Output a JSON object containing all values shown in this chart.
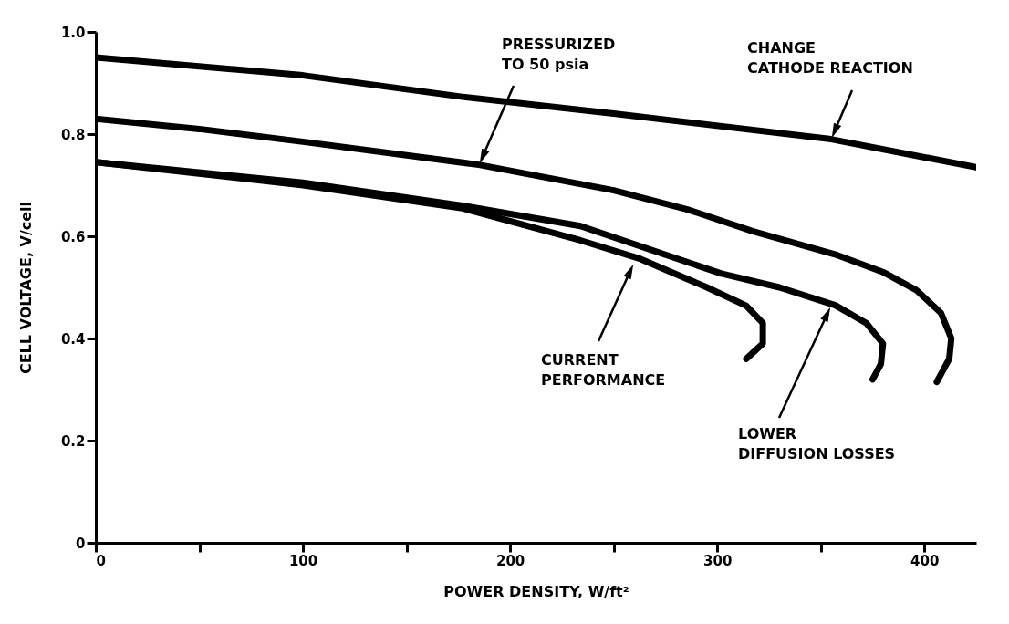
{
  "chart_data": {
    "type": "line",
    "xlabel": "POWER DENSITY, W/ft²",
    "ylabel": "CELL VOLTAGE, V/cell",
    "xlim": [
      0,
      425
    ],
    "ylim": [
      0,
      1.0
    ],
    "xticks": [
      0,
      {
        "value": 50,
        "label": null
      },
      100,
      {
        "value": 150,
        "label": null
      },
      200,
      {
        "value": 250,
        "label": null
      },
      300,
      {
        "value": 350,
        "label": null
      },
      400
    ],
    "yticks": [
      0,
      {
        "value": 0.2,
        "label": "0.2"
      },
      {
        "value": 0.4,
        "label": "0.4"
      },
      {
        "value": 0.6,
        "label": "0.6"
      },
      {
        "value": 0.8,
        "label": "0.8"
      },
      {
        "value": 1.0,
        "label": "1.0"
      }
    ],
    "grid": false,
    "legend": false,
    "marker": "none",
    "line_style": "solid",
    "series": [
      {
        "color": "#000000",
        "x": [
          0,
          100,
          177,
          250,
          355,
          425
        ],
        "values": [
          0.95,
          0.915,
          0.873,
          0.84,
          0.79,
          0.735
        ]
      },
      {
        "color": "#000000",
        "x": [
          0,
          50,
          100,
          185,
          250,
          286,
          317,
          358,
          380,
          396,
          408,
          413,
          412,
          406
        ],
        "values": [
          0.83,
          0.81,
          0.785,
          0.74,
          0.69,
          0.652,
          0.61,
          0.563,
          0.53,
          0.495,
          0.45,
          0.4,
          0.36,
          0.315
        ]
      },
      {
        "color": "#000000",
        "x": [
          0,
          100,
          177,
          234,
          302,
          330,
          357,
          372,
          380,
          379,
          375
        ],
        "values": [
          0.745,
          0.705,
          0.66,
          0.62,
          0.527,
          0.5,
          0.465,
          0.43,
          0.39,
          0.35,
          0.32
        ]
      },
      {
        "color": "#000000",
        "x": [
          0,
          100,
          177,
          234,
          262,
          295,
          314,
          322,
          322,
          314
        ],
        "values": [
          0.745,
          0.7,
          0.655,
          0.592,
          0.557,
          0.5,
          0.464,
          0.43,
          0.39,
          0.36
        ]
      }
    ],
    "annotations": [
      "PRESSURIZED\nTO 50 psia",
      "CHANGE\nCATHODE REACTION",
      "CURRENT\nPERFORMANCE",
      "LOWER\nDIFFUSION LOSSES"
    ]
  }
}
